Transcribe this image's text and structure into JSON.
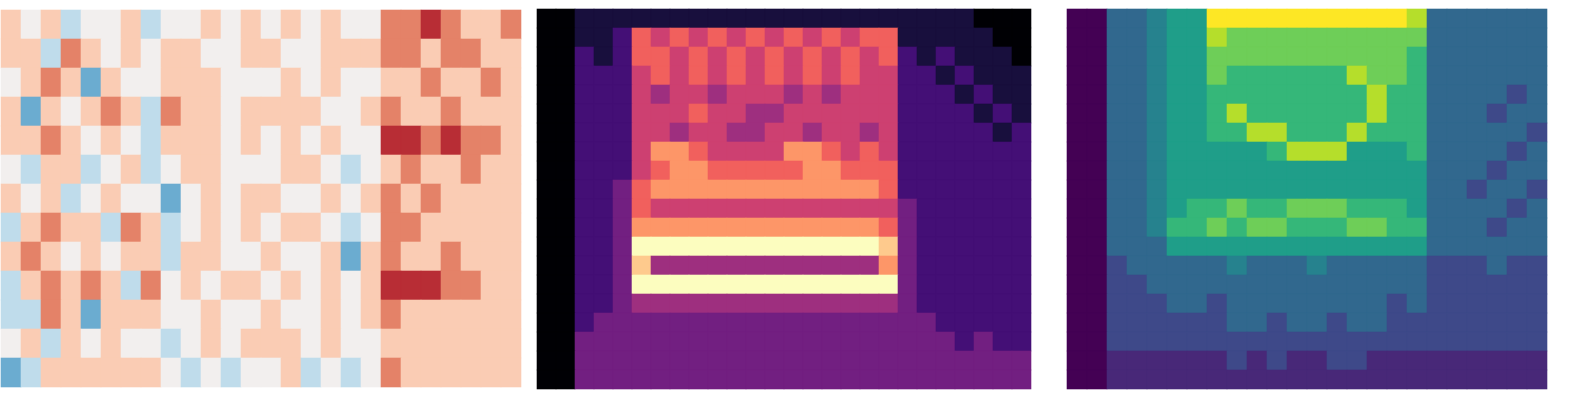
{
  "chart_data": [
    {
      "type": "heatmap",
      "color": "RdBu_r",
      "tick_labels": false,
      "color_range": [
        -4,
        4
      ],
      "cells": [
        [
          1,
          0,
          1,
          -1,
          0,
          0,
          1,
          -1,
          0,
          0,
          1,
          0,
          1,
          0,
          1,
          0,
          1,
          0,
          0,
          2,
          2,
          3,
          2,
          1,
          1,
          2
        ],
        [
          1,
          1,
          -1,
          2,
          1,
          0,
          1,
          0,
          1,
          1,
          0,
          0,
          1,
          1,
          0,
          0,
          1,
          1,
          1,
          2,
          2,
          1,
          2,
          2,
          1,
          1
        ],
        [
          0,
          1,
          2,
          1,
          -2,
          1,
          0,
          0,
          1,
          1,
          1,
          0,
          0,
          0,
          1,
          0,
          1,
          0,
          0,
          1,
          1,
          2,
          1,
          1,
          2,
          1
        ],
        [
          1,
          -2,
          1,
          0,
          1,
          2,
          1,
          -1,
          2,
          1,
          1,
          0,
          1,
          1,
          1,
          1,
          0,
          0,
          1,
          2,
          1,
          1,
          2,
          1,
          1,
          1
        ],
        [
          1,
          1,
          2,
          1,
          0,
          1,
          0,
          -1,
          1,
          1,
          1,
          0,
          1,
          0,
          1,
          0,
          1,
          0,
          0,
          3,
          3,
          2,
          3,
          2,
          2,
          1
        ],
        [
          0,
          -1,
          1,
          1,
          -1,
          0,
          1,
          -1,
          0,
          1,
          1,
          0,
          0,
          0,
          1,
          1,
          0,
          -1,
          0,
          1,
          2,
          1,
          1,
          2,
          1,
          1
        ],
        [
          1,
          0,
          1,
          -1,
          0,
          1,
          0,
          0,
          -2,
          0,
          1,
          0,
          1,
          1,
          0,
          0,
          1,
          0,
          1,
          2,
          1,
          2,
          1,
          1,
          1,
          1
        ],
        [
          -1,
          1,
          2,
          1,
          1,
          -1,
          2,
          1,
          -1,
          0,
          1,
          0,
          1,
          0,
          1,
          1,
          0,
          -1,
          0,
          2,
          2,
          1,
          1,
          1,
          1,
          1
        ],
        [
          1,
          2,
          1,
          0,
          1,
          0,
          1,
          1,
          -1,
          1,
          1,
          0,
          0,
          1,
          0,
          0,
          1,
          -2,
          1,
          2,
          1,
          1,
          2,
          1,
          1,
          1
        ],
        [
          -1,
          1,
          2,
          1,
          2,
          1,
          -1,
          2,
          0,
          1,
          0,
          1,
          1,
          0,
          1,
          0,
          1,
          0,
          1,
          3,
          3,
          3,
          2,
          2,
          1,
          1
        ],
        [
          -1,
          -1,
          2,
          1,
          -2,
          1,
          1,
          1,
          0,
          0,
          1,
          0,
          0,
          1,
          0,
          0,
          1,
          0,
          1,
          2,
          1,
          1,
          1,
          1,
          1,
          1
        ],
        [
          0,
          1,
          -1,
          1,
          0,
          1,
          0,
          0,
          -1,
          0,
          1,
          0,
          1,
          1,
          1,
          0,
          1,
          0,
          0,
          1,
          1,
          1,
          1,
          1,
          1,
          1
        ],
        [
          -2,
          -1,
          1,
          1,
          1,
          1,
          1,
          1,
          0,
          -1,
          0,
          -1,
          0,
          0,
          1,
          -1,
          0,
          -1,
          0,
          2,
          1,
          1,
          1,
          1,
          1,
          1
        ]
      ]
    },
    {
      "type": "heatmap",
      "color": "magma",
      "tick_labels": false,
      "color_range": [
        0,
        9
      ],
      "cells": [
        [
          0,
          0,
          1,
          1,
          1,
          1,
          1,
          1,
          1,
          1,
          1,
          1,
          1,
          1,
          1,
          1,
          1,
          1,
          1,
          1,
          1,
          1,
          1,
          0,
          0,
          0
        ],
        [
          0,
          0,
          1,
          1,
          2,
          6,
          5,
          6,
          5,
          6,
          5,
          6,
          5,
          6,
          5,
          6,
          5,
          6,
          6,
          1,
          1,
          1,
          1,
          1,
          0,
          0
        ],
        [
          0,
          0,
          2,
          1,
          2,
          6,
          6,
          5,
          6,
          5,
          6,
          5,
          6,
          5,
          6,
          5,
          6,
          5,
          6,
          2,
          1,
          2,
          1,
          1,
          1,
          0
        ],
        [
          0,
          0,
          2,
          2,
          2,
          5,
          6,
          5,
          6,
          5,
          6,
          5,
          6,
          5,
          6,
          5,
          6,
          5,
          5,
          2,
          2,
          1,
          2,
          1,
          1,
          1
        ],
        [
          0,
          0,
          2,
          2,
          2,
          5,
          4,
          5,
          5,
          4,
          5,
          5,
          5,
          4,
          5,
          4,
          5,
          5,
          5,
          2,
          2,
          2,
          1,
          2,
          1,
          1
        ],
        [
          0,
          0,
          2,
          2,
          2,
          5,
          5,
          5,
          6,
          5,
          5,
          4,
          4,
          5,
          5,
          5,
          5,
          5,
          5,
          2,
          2,
          2,
          2,
          1,
          2,
          1
        ],
        [
          0,
          0,
          2,
          2,
          2,
          5,
          5,
          4,
          5,
          5,
          4,
          4,
          5,
          5,
          4,
          5,
          5,
          4,
          5,
          2,
          2,
          2,
          2,
          2,
          1,
          2
        ],
        [
          0,
          0,
          2,
          2,
          2,
          5,
          7,
          7,
          6,
          5,
          5,
          5,
          5,
          7,
          7,
          6,
          5,
          6,
          5,
          2,
          2,
          2,
          2,
          2,
          2,
          2
        ],
        [
          0,
          0,
          2,
          2,
          2,
          5,
          6,
          7,
          7,
          6,
          6,
          6,
          6,
          6,
          7,
          7,
          6,
          6,
          6,
          2,
          2,
          2,
          2,
          2,
          2,
          2
        ],
        [
          0,
          0,
          2,
          2,
          3,
          6,
          7,
          7,
          7,
          7,
          7,
          7,
          7,
          7,
          7,
          7,
          7,
          7,
          6,
          2,
          2,
          2,
          2,
          2,
          2,
          2
        ],
        [
          0,
          0,
          2,
          2,
          3,
          6,
          5,
          5,
          5,
          5,
          5,
          5,
          5,
          5,
          5,
          5,
          5,
          5,
          5,
          3,
          2,
          2,
          2,
          2,
          2,
          2
        ],
        [
          0,
          0,
          2,
          2,
          3,
          7,
          7,
          7,
          7,
          7,
          7,
          7,
          7,
          7,
          7,
          7,
          7,
          7,
          6,
          3,
          2,
          2,
          2,
          2,
          2,
          2
        ],
        [
          0,
          0,
          2,
          2,
          3,
          9,
          9,
          9,
          9,
          9,
          9,
          9,
          9,
          9,
          9,
          9,
          9,
          9,
          8,
          3,
          2,
          2,
          2,
          2,
          2,
          2
        ],
        [
          0,
          0,
          2,
          2,
          3,
          8,
          4,
          4,
          4,
          4,
          4,
          4,
          4,
          4,
          4,
          4,
          4,
          4,
          7,
          3,
          2,
          2,
          2,
          2,
          2,
          2
        ],
        [
          0,
          0,
          2,
          2,
          3,
          9,
          9,
          9,
          9,
          9,
          9,
          9,
          9,
          9,
          9,
          9,
          9,
          9,
          9,
          3,
          2,
          2,
          2,
          2,
          2,
          2
        ],
        [
          0,
          0,
          2,
          2,
          3,
          4,
          4,
          4,
          4,
          4,
          4,
          4,
          4,
          4,
          4,
          4,
          4,
          4,
          4,
          3,
          2,
          2,
          2,
          2,
          2,
          2
        ],
        [
          0,
          0,
          2,
          3,
          3,
          3,
          3,
          3,
          3,
          3,
          3,
          3,
          3,
          3,
          3,
          3,
          3,
          3,
          3,
          3,
          3,
          2,
          2,
          2,
          2,
          2
        ],
        [
          0,
          0,
          3,
          3,
          3,
          3,
          3,
          3,
          3,
          3,
          3,
          3,
          3,
          3,
          3,
          3,
          3,
          3,
          3,
          3,
          3,
          3,
          2,
          3,
          2,
          2
        ],
        [
          0,
          0,
          3,
          3,
          3,
          3,
          3,
          3,
          3,
          3,
          3,
          3,
          3,
          3,
          3,
          3,
          3,
          3,
          3,
          3,
          3,
          3,
          3,
          3,
          3,
          3
        ],
        [
          0,
          0,
          3,
          3,
          3,
          3,
          3,
          3,
          3,
          3,
          3,
          3,
          3,
          3,
          3,
          3,
          3,
          3,
          3,
          3,
          3,
          3,
          3,
          3,
          3,
          3
        ]
      ]
    },
    {
      "type": "heatmap",
      "color": "viridis",
      "tick_labels": false,
      "color_range": [
        0,
        9
      ],
      "cells": [
        [
          0,
          0,
          3,
          3,
          4,
          5,
          5,
          9,
          9,
          9,
          9,
          9,
          9,
          9,
          9,
          9,
          9,
          8,
          3,
          3,
          3,
          3,
          3,
          3
        ],
        [
          0,
          0,
          3,
          3,
          4,
          5,
          5,
          8,
          7,
          7,
          7,
          7,
          7,
          7,
          7,
          7,
          7,
          7,
          3,
          3,
          3,
          3,
          3,
          3
        ],
        [
          0,
          0,
          3,
          3,
          4,
          5,
          5,
          7,
          7,
          7,
          7,
          7,
          7,
          7,
          7,
          7,
          7,
          6,
          3,
          3,
          3,
          3,
          3,
          3
        ],
        [
          0,
          0,
          3,
          3,
          4,
          5,
          5,
          7,
          6,
          6,
          6,
          6,
          6,
          6,
          8,
          7,
          7,
          6,
          3,
          3,
          3,
          3,
          3,
          3
        ],
        [
          0,
          0,
          3,
          3,
          4,
          5,
          5,
          6,
          6,
          6,
          6,
          6,
          6,
          6,
          6,
          8,
          6,
          6,
          3,
          3,
          3,
          3,
          2,
          3
        ],
        [
          0,
          0,
          3,
          3,
          4,
          5,
          5,
          6,
          8,
          6,
          6,
          6,
          6,
          6,
          6,
          8,
          6,
          6,
          3,
          3,
          3,
          2,
          3,
          3
        ],
        [
          0,
          0,
          3,
          3,
          4,
          5,
          5,
          6,
          6,
          8,
          8,
          6,
          6,
          6,
          8,
          6,
          6,
          6,
          3,
          3,
          3,
          3,
          3,
          2
        ],
        [
          0,
          0,
          3,
          3,
          4,
          5,
          5,
          5,
          5,
          5,
          6,
          8,
          8,
          8,
          5,
          5,
          5,
          6,
          3,
          3,
          3,
          3,
          2,
          3
        ],
        [
          0,
          0,
          3,
          3,
          4,
          5,
          5,
          5,
          5,
          5,
          5,
          5,
          5,
          5,
          5,
          5,
          5,
          5,
          3,
          3,
          3,
          2,
          3,
          3
        ],
        [
          0,
          0,
          3,
          3,
          4,
          5,
          5,
          5,
          5,
          5,
          5,
          5,
          5,
          5,
          5,
          5,
          5,
          5,
          3,
          3,
          2,
          3,
          3,
          2
        ],
        [
          0,
          0,
          3,
          3,
          4,
          5,
          6,
          6,
          7,
          6,
          6,
          7,
          7,
          7,
          6,
          6,
          6,
          5,
          3,
          3,
          3,
          3,
          2,
          3
        ],
        [
          0,
          0,
          3,
          3,
          4,
          6,
          6,
          7,
          6,
          7,
          7,
          6,
          6,
          6,
          7,
          7,
          6,
          6,
          3,
          3,
          3,
          2,
          3,
          3
        ],
        [
          0,
          0,
          3,
          3,
          3,
          5,
          5,
          5,
          5,
          5,
          5,
          5,
          5,
          5,
          5,
          5,
          5,
          5,
          3,
          3,
          3,
          3,
          3,
          3
        ],
        [
          0,
          0,
          2,
          3,
          3,
          3,
          3,
          3,
          4,
          3,
          3,
          3,
          4,
          3,
          3,
          3,
          3,
          3,
          2,
          2,
          2,
          3,
          2,
          2
        ],
        [
          0,
          0,
          2,
          2,
          3,
          3,
          3,
          3,
          3,
          3,
          3,
          3,
          3,
          3,
          3,
          3,
          3,
          3,
          2,
          2,
          2,
          2,
          2,
          2
        ],
        [
          0,
          0,
          2,
          2,
          2,
          3,
          3,
          2,
          3,
          3,
          3,
          3,
          3,
          3,
          3,
          3,
          2,
          3,
          2,
          2,
          2,
          2,
          2,
          2
        ],
        [
          0,
          0,
          2,
          2,
          2,
          2,
          2,
          2,
          3,
          3,
          2,
          3,
          3,
          2,
          3,
          3,
          2,
          2,
          2,
          2,
          2,
          2,
          2,
          2
        ],
        [
          0,
          0,
          2,
          2,
          2,
          2,
          2,
          2,
          2,
          2,
          2,
          2,
          2,
          2,
          2,
          2,
          2,
          2,
          2,
          2,
          2,
          2,
          2,
          2
        ],
        [
          0,
          0,
          1,
          1,
          1,
          1,
          1,
          1,
          2,
          1,
          2,
          1,
          1,
          2,
          2,
          1,
          1,
          1,
          1,
          1,
          1,
          1,
          1,
          1
        ],
        [
          0,
          0,
          1,
          1,
          1,
          1,
          1,
          1,
          1,
          1,
          1,
          1,
          1,
          1,
          1,
          1,
          1,
          1,
          1,
          1,
          1,
          1,
          1,
          1
        ]
      ]
    }
  ]
}
